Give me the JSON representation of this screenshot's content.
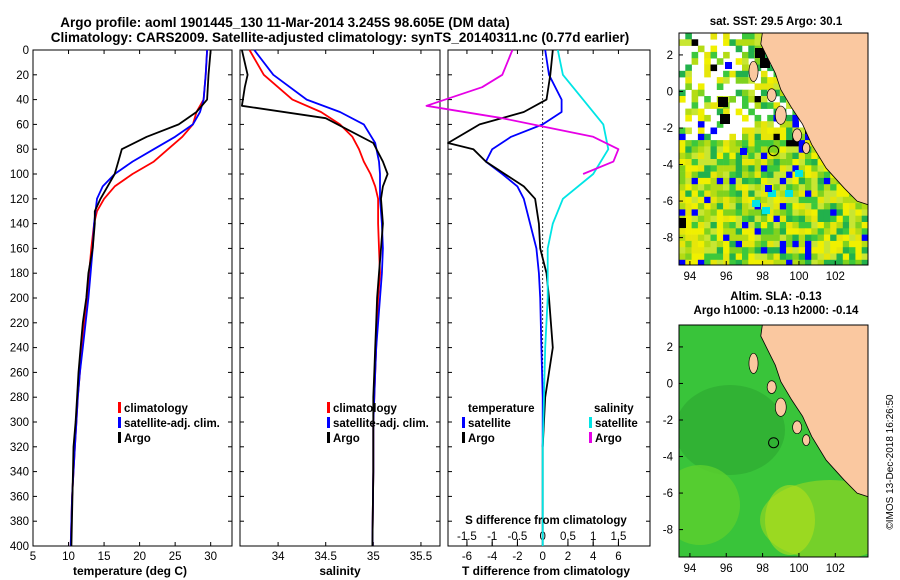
{
  "header": {
    "line1": "Argo profile: aoml 1901445_130 11-Mar-2014 3.245S 98.605E (DM data)",
    "line2": "Climatology: CARS2009. Satellite-adjusted climatology: synTS_20140311.nc (0.77d earlier)"
  },
  "colors": {
    "climatology": "#ff0000",
    "satellite": "#0000ff",
    "argo": "#000000",
    "sal_satellite": "#00e5e5",
    "sal_argo": "#e600e6"
  },
  "chart_data": [
    {
      "type": "line",
      "name": "temperature",
      "xlabel": "temperature (deg C)",
      "ylabel": "",
      "xlim": [
        5,
        33
      ],
      "ylim": [
        400,
        0
      ],
      "xticks": [
        "5",
        "10",
        "15",
        "20",
        "25",
        "30"
      ],
      "yticks": [
        "0",
        "20",
        "40",
        "60",
        "80",
        "100",
        "120",
        "140",
        "160",
        "180",
        "200",
        "220",
        "240",
        "260",
        "280",
        "300",
        "320",
        "340",
        "360",
        "380",
        "400"
      ],
      "legend": [
        "climatology",
        "satellite-adj. clim.",
        "Argo"
      ],
      "legend_position": "lower-right",
      "series": [
        {
          "name": "climatology",
          "color": "#ff0000",
          "x": [
            29.5,
            29.3,
            29,
            28,
            27.5,
            26,
            24,
            22,
            19,
            16.5,
            15,
            14,
            13.6,
            13.2,
            12.9,
            12.6,
            12.2,
            11.9,
            11.6,
            11.3,
            11.1,
            10.9,
            10.7,
            10.5,
            10.3
          ],
          "y": [
            0,
            20,
            40,
            50,
            60,
            70,
            80,
            90,
            100,
            110,
            120,
            130,
            140,
            160,
            180,
            200,
            220,
            240,
            260,
            280,
            300,
            320,
            340,
            360,
            400
          ]
        },
        {
          "name": "satellite-adj. clim.",
          "color": "#0000ff",
          "x": [
            29.5,
            29.3,
            29,
            28.5,
            27.5,
            25,
            22,
            19,
            16.5,
            14.8,
            14,
            13.8,
            13.6,
            13.4,
            13.1,
            12.8,
            12.4,
            12,
            11.6,
            11.3,
            11.1,
            10.9,
            10.7,
            10.5,
            10.3
          ],
          "y": [
            0,
            20,
            40,
            50,
            60,
            70,
            80,
            90,
            100,
            110,
            120,
            130,
            140,
            160,
            180,
            200,
            220,
            240,
            260,
            280,
            300,
            320,
            340,
            360,
            400
          ]
        },
        {
          "name": "Argo",
          "color": "#000000",
          "x": [
            30,
            29.7,
            29.5,
            28,
            25.5,
            21,
            17.5,
            17,
            16.5,
            15.5,
            14.5,
            13.7,
            13.7,
            13.4,
            12.8,
            12.5,
            12,
            11.7,
            11.4,
            11.2,
            11,
            10.7,
            10.4
          ],
          "y": [
            0,
            20,
            40,
            50,
            60,
            70,
            80,
            90,
            100,
            110,
            120,
            130,
            140,
            160,
            180,
            200,
            220,
            240,
            260,
            280,
            300,
            320,
            400
          ]
        }
      ]
    },
    {
      "type": "line",
      "name": "salinity",
      "xlabel": "salinity",
      "ylabel": "",
      "xlim": [
        33.6,
        35.7
      ],
      "ylim": [
        400,
        0
      ],
      "xticks": [
        "34",
        "34.5",
        "35",
        "35.5"
      ],
      "legend": [
        "climatology",
        "satellite-adj. clim.",
        "Argo"
      ],
      "legend_position": "lower-right",
      "series": [
        {
          "name": "climatology",
          "color": "#ff0000",
          "x": [
            33.7,
            33.85,
            34.15,
            34.45,
            34.65,
            34.78,
            34.85,
            34.9,
            34.97,
            35.02,
            35.05,
            35.05,
            35.06,
            35.07,
            35.05,
            35.04,
            35.03,
            35.02,
            35.01,
            35.0,
            35.0,
            34.99
          ],
          "y": [
            0,
            20,
            40,
            50,
            60,
            70,
            80,
            90,
            100,
            110,
            120,
            140,
            160,
            180,
            200,
            220,
            240,
            260,
            280,
            300,
            340,
            400
          ]
        },
        {
          "name": "satellite-adj. clim.",
          "color": "#0000ff",
          "x": [
            33.75,
            33.95,
            34.3,
            34.65,
            34.9,
            35.02,
            35.06,
            35.07,
            35.07,
            35.07,
            35.09,
            35.1,
            35.09,
            35.07,
            35.05,
            35.03,
            35.02,
            35.01,
            35.0,
            35.0,
            34.99
          ],
          "y": [
            0,
            20,
            40,
            50,
            60,
            75,
            90,
            100,
            110,
            120,
            140,
            160,
            180,
            200,
            220,
            240,
            260,
            280,
            300,
            340,
            400
          ]
        },
        {
          "name": "Argo",
          "color": "#000000",
          "x": [
            33.62,
            33.68,
            33.65,
            33.62,
            34.5,
            35.0,
            35.1,
            35.15,
            35.1,
            35.08,
            35.1,
            35.08,
            35.06,
            35.04,
            35.03,
            35.02,
            35.01,
            35.0,
            35.0,
            34.99
          ],
          "y": [
            0,
            20,
            30,
            45,
            55,
            75,
            90,
            100,
            110,
            120,
            140,
            160,
            180,
            200,
            220,
            240,
            260,
            280,
            340,
            400
          ]
        }
      ]
    },
    {
      "type": "line",
      "name": "difference",
      "xlabel": "T difference from climatology",
      "xlabel_top": "S difference from climatology",
      "xlim": [
        -7.5,
        8.5
      ],
      "ylim": [
        400,
        0
      ],
      "xticks": [
        "-6",
        "-4",
        "-2",
        "0",
        "2",
        "4",
        "6"
      ],
      "xticks_top": [
        "-1.5",
        "-1",
        "-0.5",
        "0",
        "0.5",
        "1",
        "1.5"
      ],
      "legend_left": {
        "title": "temperature",
        "items": [
          "satellite",
          "Argo"
        ]
      },
      "legend_right": {
        "title": "salinity",
        "items": [
          "satellite",
          "Argo"
        ]
      },
      "series": [
        {
          "name": "T satellite",
          "color": "#0000ff",
          "x": [
            0.2,
            0.5,
            1.5,
            1.5,
            0,
            -2.5,
            -4,
            -4.5,
            -3.2,
            -2,
            -1.5,
            -1,
            -0.5,
            -0.3,
            -0.2,
            -0.1,
            0,
            0
          ],
          "y": [
            0,
            20,
            40,
            50,
            60,
            70,
            80,
            90,
            100,
            110,
            120,
            140,
            160,
            180,
            200,
            240,
            280,
            320
          ]
        },
        {
          "name": "T Argo",
          "color": "#000000",
          "x": [
            0.8,
            0.6,
            0.3,
            -1.5,
            -5,
            -7.5,
            -5.5,
            -4.5,
            -3,
            -1.5,
            -0.6,
            -0.3,
            -0.2,
            0.3,
            0.5,
            0.8,
            0.5,
            0.2,
            0,
            0
          ],
          "y": [
            0,
            20,
            40,
            50,
            60,
            75,
            80,
            90,
            100,
            110,
            120,
            140,
            160,
            180,
            200,
            240,
            260,
            280,
            320,
            400
          ]
        },
        {
          "name": "S satellite",
          "color": "#00e5e5",
          "x": [
            0.3,
            0.4,
            0.8,
            1.2,
            1.3,
            1,
            0.4,
            0.2,
            0.1,
            0.1,
            0.05,
            0,
            0
          ],
          "y": [
            0,
            20,
            40,
            60,
            80,
            100,
            120,
            140,
            160,
            200,
            240,
            320,
            400
          ]
        },
        {
          "name": "S Argo",
          "color": "#e600e6",
          "x": [
            -0.6,
            -0.8,
            -1.2,
            -2.3,
            -0.8,
            1,
            1.5,
            1.4,
            0.8
          ],
          "y": [
            0,
            20,
            30,
            45,
            55,
            70,
            80,
            90,
            100
          ]
        }
      ]
    }
  ],
  "maps": [
    {
      "name": "sst-map",
      "title": "sat. SST: 29.5 Argo: 30.1",
      "xticks": [
        "94",
        "96",
        "98",
        "100",
        "102"
      ],
      "yticks": [
        "2",
        "0",
        "-2",
        "-4",
        "-6",
        "-8"
      ]
    },
    {
      "name": "sla-map",
      "title_line1": "Altim. SLA: -0.13",
      "title_line2": "Argo h1000: -0.13 h2000: -0.14",
      "xticks": [
        "94",
        "96",
        "98",
        "100",
        "102"
      ],
      "yticks": [
        "2",
        "0",
        "-2",
        "-4",
        "-6",
        "-8"
      ]
    }
  ],
  "credit": "©IMOS 13-Dec-2018 16:26:50"
}
